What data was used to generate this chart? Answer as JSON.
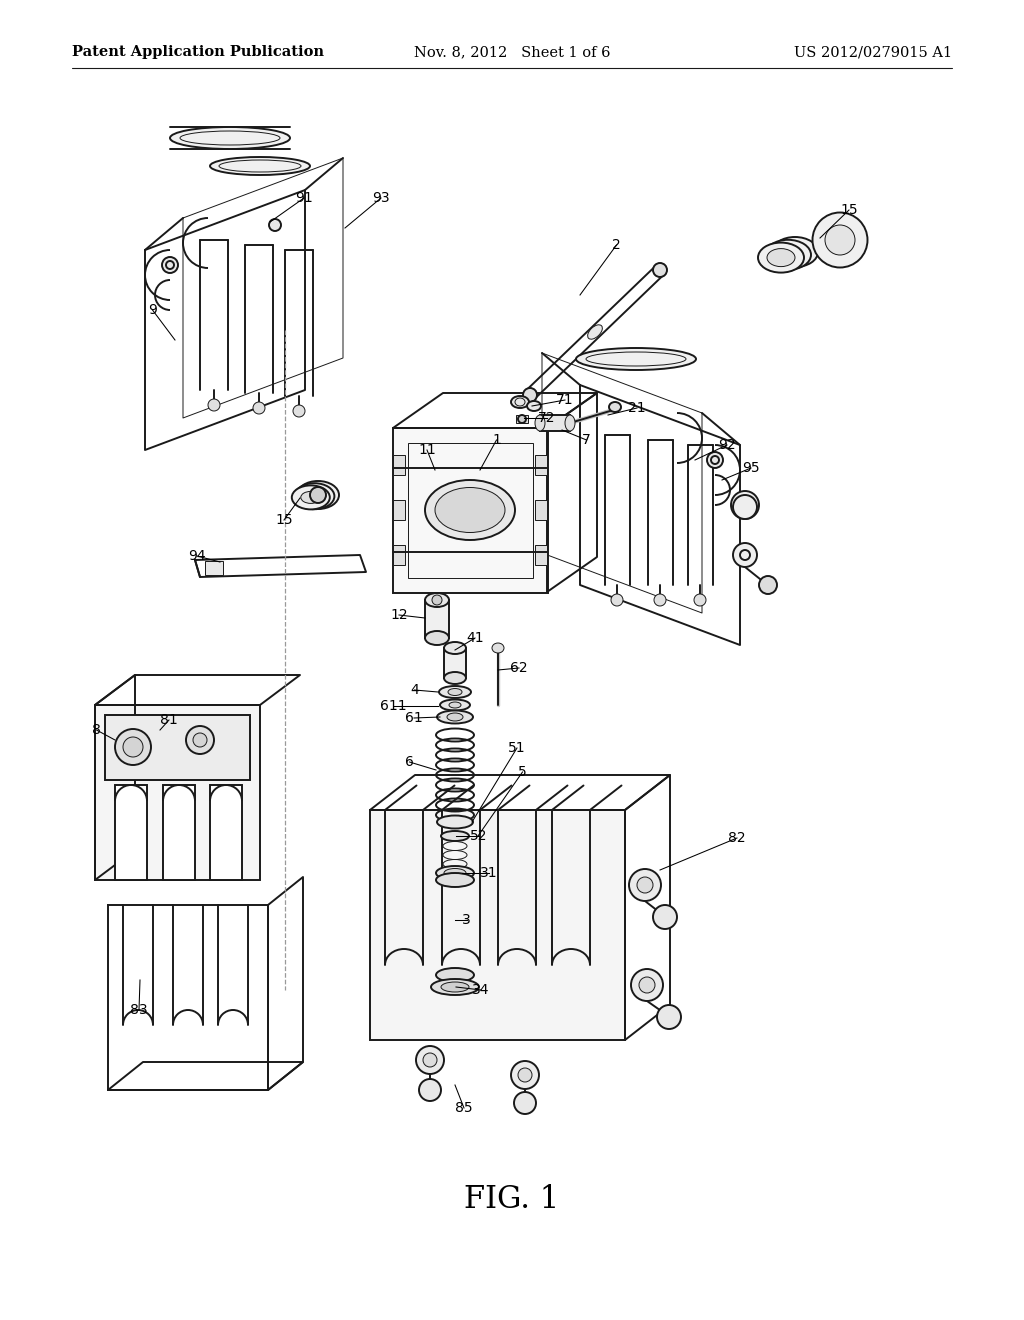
{
  "bg_color": "#ffffff",
  "header_left": "Patent Application Publication",
  "header_mid": "Nov. 8, 2012   Sheet 1 of 6",
  "header_right": "US 2012/0279015 A1",
  "figure_label": "FIG. 1",
  "header_fontsize": 10.5,
  "fig_label_fontsize": 22,
  "label_fontsize": 10,
  "line_color": "#1a1a1a",
  "lw_main": 1.4,
  "lw_thin": 0.7
}
